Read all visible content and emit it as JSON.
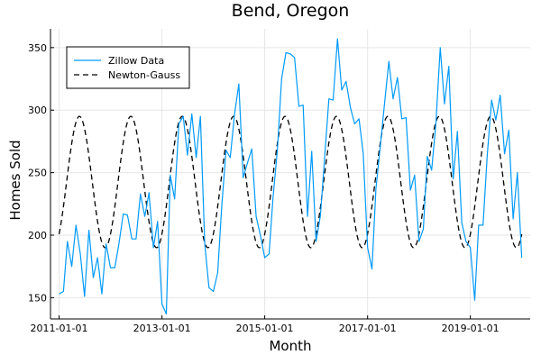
{
  "chart_data": {
    "type": "line",
    "title": "Bend, Oregon",
    "xlabel": "Month",
    "ylabel": "Homes Sold",
    "x_ticks": [
      "2011-01-01",
      "2013-01-01",
      "2015-01-01",
      "2017-01-01",
      "2019-01-01"
    ],
    "y_ticks": [
      150,
      200,
      250,
      300,
      350
    ],
    "xlim": [
      "2010-11-01",
      "2020-03-01"
    ],
    "ylim": [
      133,
      365
    ],
    "grid": true,
    "legend_position": "top-left",
    "series": [
      {
        "name": "Zillow Data",
        "style": "solid",
        "color": "#009AFA",
        "points": [
          [
            "2011-01-01",
            153
          ],
          [
            "2011-02-01",
            155
          ],
          [
            "2011-03-01",
            195
          ],
          [
            "2011-04-01",
            175
          ],
          [
            "2011-05-01",
            208
          ],
          [
            "2011-06-01",
            185
          ],
          [
            "2011-07-01",
            151
          ],
          [
            "2011-08-01",
            204
          ],
          [
            "2011-09-01",
            166
          ],
          [
            "2011-10-01",
            182
          ],
          [
            "2011-11-01",
            153
          ],
          [
            "2011-12-01",
            193
          ],
          [
            "2012-01-01",
            174
          ],
          [
            "2012-02-01",
            174
          ],
          [
            "2012-03-01",
            193
          ],
          [
            "2012-04-01",
            217
          ],
          [
            "2012-05-01",
            216
          ],
          [
            "2012-06-01",
            197
          ],
          [
            "2012-07-01",
            197
          ],
          [
            "2012-08-01",
            233
          ],
          [
            "2012-09-01",
            215
          ],
          [
            "2012-10-01",
            234
          ],
          [
            "2012-11-01",
            190
          ],
          [
            "2012-12-01",
            211
          ],
          [
            "2013-01-01",
            145
          ],
          [
            "2013-02-01",
            137
          ],
          [
            "2013-03-01",
            248
          ],
          [
            "2013-04-01",
            229
          ],
          [
            "2013-05-01",
            289
          ],
          [
            "2013-06-01",
            295
          ],
          [
            "2013-07-01",
            264
          ],
          [
            "2013-08-01",
            297
          ],
          [
            "2013-09-01",
            262
          ],
          [
            "2013-10-01",
            295
          ],
          [
            "2013-11-01",
            193
          ],
          [
            "2013-12-01",
            158
          ],
          [
            "2014-01-01",
            155
          ],
          [
            "2014-02-01",
            170
          ],
          [
            "2014-03-01",
            222
          ],
          [
            "2014-04-01",
            268
          ],
          [
            "2014-05-01",
            262
          ],
          [
            "2014-06-01",
            297
          ],
          [
            "2014-07-01",
            321
          ],
          [
            "2014-08-01",
            246
          ],
          [
            "2014-09-01",
            258
          ],
          [
            "2014-10-01",
            269
          ],
          [
            "2014-11-01",
            215
          ],
          [
            "2014-12-01",
            200
          ],
          [
            "2015-01-01",
            182
          ],
          [
            "2015-02-01",
            185
          ],
          [
            "2015-03-01",
            230
          ],
          [
            "2015-04-01",
            268
          ],
          [
            "2015-05-01",
            325
          ],
          [
            "2015-06-01",
            346
          ],
          [
            "2015-07-01",
            345
          ],
          [
            "2015-08-01",
            342
          ],
          [
            "2015-09-01",
            303
          ],
          [
            "2015-10-01",
            304
          ],
          [
            "2015-11-01",
            215
          ],
          [
            "2015-12-01",
            267
          ],
          [
            "2016-01-01",
            195
          ],
          [
            "2016-02-01",
            216
          ],
          [
            "2016-03-01",
            261
          ],
          [
            "2016-04-01",
            309
          ],
          [
            "2016-05-01",
            308
          ],
          [
            "2016-06-01",
            357
          ],
          [
            "2016-07-01",
            316
          ],
          [
            "2016-08-01",
            323
          ],
          [
            "2016-09-01",
            302
          ],
          [
            "2016-10-01",
            289
          ],
          [
            "2016-11-01",
            293
          ],
          [
            "2016-12-01",
            265
          ],
          [
            "2017-01-01",
            190
          ],
          [
            "2017-02-01",
            173
          ],
          [
            "2017-03-01",
            237
          ],
          [
            "2017-04-01",
            271
          ],
          [
            "2017-05-01",
            305
          ],
          [
            "2017-06-01",
            339
          ],
          [
            "2017-07-01",
            309
          ],
          [
            "2017-08-01",
            326
          ],
          [
            "2017-09-01",
            293
          ],
          [
            "2017-10-01",
            294
          ],
          [
            "2017-11-01",
            236
          ],
          [
            "2017-12-01",
            248
          ],
          [
            "2018-01-01",
            195
          ],
          [
            "2018-02-01",
            205
          ],
          [
            "2018-03-01",
            263
          ],
          [
            "2018-04-01",
            252
          ],
          [
            "2018-05-01",
            289
          ],
          [
            "2018-06-01",
            350
          ],
          [
            "2018-07-01",
            305
          ],
          [
            "2018-08-01",
            335
          ],
          [
            "2018-09-01",
            245
          ],
          [
            "2018-10-01",
            283
          ],
          [
            "2018-11-01",
            210
          ],
          [
            "2018-12-01",
            195
          ],
          [
            "2019-01-01",
            190
          ],
          [
            "2019-02-01",
            148
          ],
          [
            "2019-03-01",
            208
          ],
          [
            "2019-04-01",
            208
          ],
          [
            "2019-05-01",
            264
          ],
          [
            "2019-06-01",
            308
          ],
          [
            "2019-07-01",
            292
          ],
          [
            "2019-08-01",
            312
          ],
          [
            "2019-09-01",
            265
          ],
          [
            "2019-10-01",
            284
          ],
          [
            "2019-11-01",
            213
          ],
          [
            "2019-12-01",
            250
          ],
          [
            "2020-01-01",
            182
          ]
        ]
      },
      {
        "name": "Newton-Gauss",
        "style": "dashed",
        "color": "#000000",
        "model": {
          "form": "mean + amplitude * sin(2π(month - phase_month)/12)",
          "mean": 242.5,
          "amplitude": 52.5,
          "phase_month": 1.75,
          "start": "2011-01-01",
          "end": "2020-01-01"
        }
      }
    ]
  }
}
